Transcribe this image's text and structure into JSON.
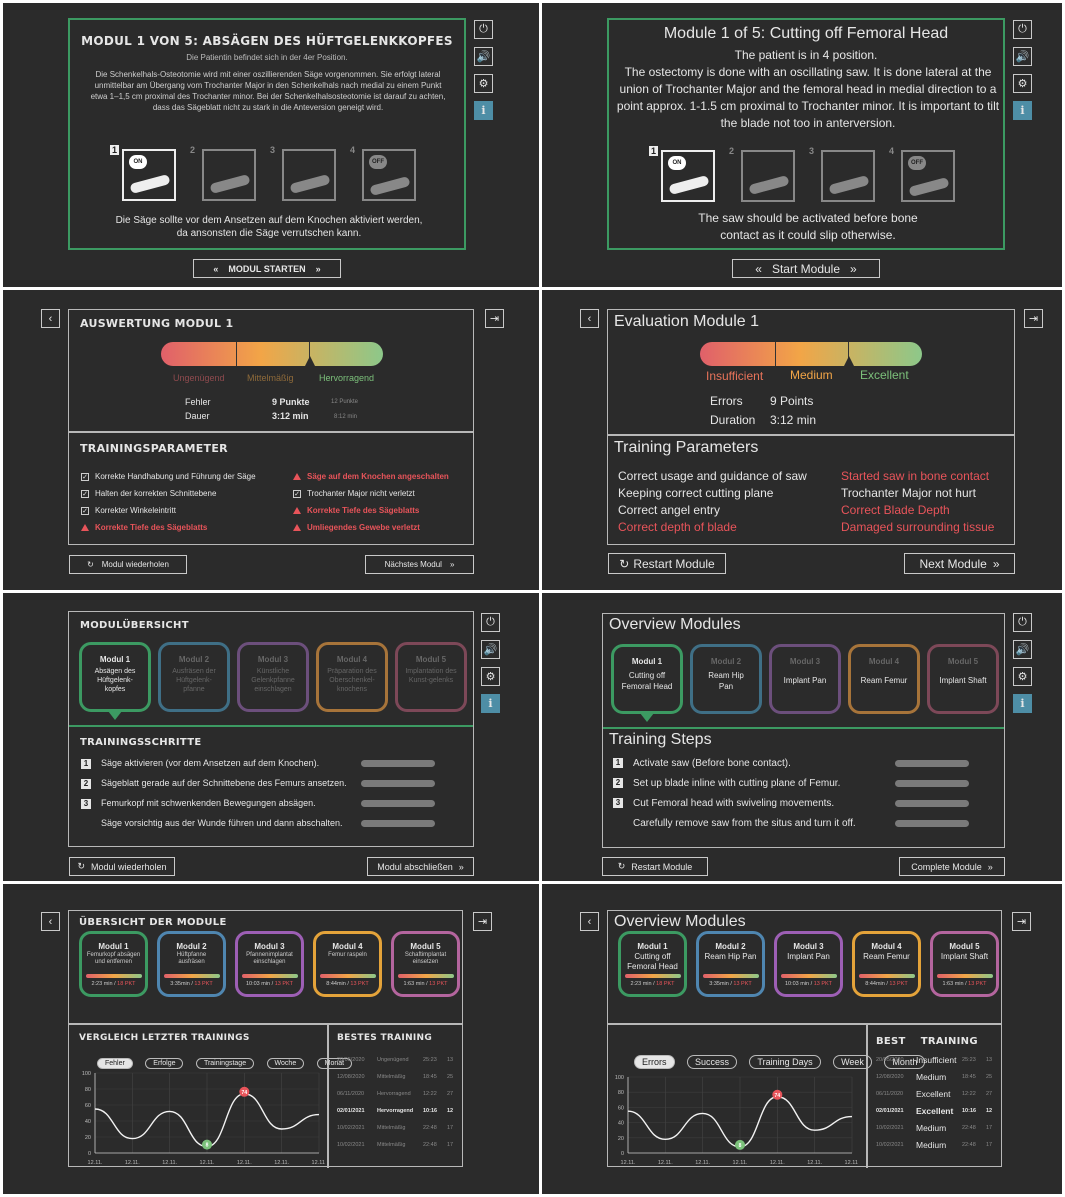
{
  "p1": {
    "title": "MODUL 1 VON 5: ABSÄGEN DES HÜFTGELENKKOPFES",
    "subtitle": "Die Patientin befindet sich in der 4er Position.",
    "body": "Die Schenkelhals-Osteotomie wird mit einer oszillierenden Säge vorgenommen. Sie erfolgt lateral unmittelbar am Übergang vom Trochanter Major in den Schenkelhals nach medial zu einem Punkt etwa 1–1,5 cm proximal des Trochanter minor. Bei der Schenkelhalsosteotomie ist darauf zu achten, dass das Sägeblatt nicht zu stark in die Anteversion geneigt wird.",
    "step_numbers": [
      "1",
      "2",
      "3",
      "4"
    ],
    "on_label": "ON",
    "off_label": "OFF",
    "hint": "Die Säge sollte vor dem Ansetzen auf dem Knochen aktiviert werden, da ansonsten die Säge verrutschen kann.",
    "start_button": "MODUL STARTEN"
  },
  "p2": {
    "title": "Module 1 of 5: Cutting off Femoral Head",
    "subtitle": "The patient is in 4 position.",
    "body": "The ostectomy is done with an oscillating saw. It is done lateral at the union of Trochanter Major and the femoral head in medial direction to a point approx. 1-1.5 cm proximal to Trochanter minor. It is important to tilt the blade not too in anterversion.",
    "step_numbers": [
      "1",
      "2",
      "3",
      "4"
    ],
    "on_label": "ON",
    "off_label": "OFF",
    "hint": "The saw should be activated before bone contact as it could slip otherwise.",
    "start_button": "Start Module"
  },
  "p3": {
    "title": "AUSWERTUNG MODUL 1",
    "scale": [
      "Ungenügend",
      "Mittelmäßig",
      "Hervorragend"
    ],
    "errors_label": "Fehler",
    "errors_value": "9 Punkte",
    "errors_max": "12 Punkte",
    "duration_label": "Dauer",
    "duration_value": "3:12 min",
    "duration_max": "8:12 min",
    "params_title": "TRAININGSPARAMETER",
    "params_left": [
      {
        "text": "Korrekte Handhabung und Führung der Säge",
        "ok": true
      },
      {
        "text": "Halten der korrekten Schnittebene",
        "ok": true
      },
      {
        "text": "Korrekter Winkeleintritt",
        "ok": true
      },
      {
        "text": "Korrekte Tiefe des Sägeblatts",
        "ok": false
      }
    ],
    "params_right": [
      {
        "text": "Säge auf dem Knochen angeschalten",
        "ok": false
      },
      {
        "text": "Trochanter Major nicht verletzt",
        "ok": true
      },
      {
        "text": "Korrekte Tiefe des Sägeblatts",
        "ok": false
      },
      {
        "text": "Umliegendes Gewebe verletzt",
        "ok": false
      }
    ],
    "repeat_button": "Modul wiederholen",
    "next_button": "Nächstes Modul"
  },
  "p4": {
    "title": "Evaluation Module 1",
    "scale": [
      "Insufficient",
      "Medium",
      "Excellent"
    ],
    "errors_label": "Errors",
    "errors_value": "9 Points",
    "duration_label": "Duration",
    "duration_value": "3:12 min",
    "params_title": "Training Parameters",
    "params_left": [
      {
        "text": "Correct usage and guidance of saw",
        "ok": true
      },
      {
        "text": "Keeping correct cutting plane",
        "ok": true
      },
      {
        "text": "Correct angel entry",
        "ok": true
      },
      {
        "text": "Correct depth of blade",
        "ok": false
      }
    ],
    "params_right": [
      {
        "text": "Started saw in bone contact",
        "ok": false
      },
      {
        "text": "Trochanter Major not hurt",
        "ok": true
      },
      {
        "text": "Correct Blade Depth",
        "ok": false
      },
      {
        "text": "Damaged surrounding tissue",
        "ok": false
      }
    ],
    "repeat_button": "Restart Module",
    "next_button": "Next Module"
  },
  "p5": {
    "title": "MODULÜBERSICHT",
    "modules": [
      {
        "name": "Modul 1",
        "desc": "Absägen des Hüftgelenk-kopfes",
        "color": "#3c9a62",
        "active": true
      },
      {
        "name": "Modul 2",
        "desc": "Ausfräsen der Hüftgelenk-pfanne",
        "color": "#3f6f86",
        "active": false
      },
      {
        "name": "Modul 3",
        "desc": "Künstliche Gelenkpfanne einschlagen",
        "color": "#6c4f7c",
        "active": false
      },
      {
        "name": "Modul 4",
        "desc": "Präparation des Oberschenkel-knochens",
        "color": "#a7743a",
        "active": false
      },
      {
        "name": "Modul 5",
        "desc": "Implantation des Kunst-gelenks",
        "color": "#7d4858",
        "active": false
      }
    ],
    "steps_title": "TRAININGSSCHRITTE",
    "steps": [
      {
        "num": "1",
        "text": "Säge aktivieren (vor dem Ansetzen auf dem Knochen)."
      },
      {
        "num": "2",
        "text": "Sägeblatt gerade auf der Schnittebene des Femurs ansetzen."
      },
      {
        "num": "3",
        "text": "Femurkopf mit schwenkenden Bewegungen absägen."
      },
      {
        "num": "",
        "text": "Säge vorsichtig aus der Wunde führen und dann abschalten."
      }
    ],
    "repeat_button": "Modul wiederholen",
    "complete_button": "Modul abschließen"
  },
  "p6": {
    "title": "Overview Modules",
    "modules": [
      {
        "name": "Modul 1",
        "desc": "Cutting off Femoral Head",
        "color": "#3c9a62",
        "active": true
      },
      {
        "name": "Modul 2",
        "desc": "Ream Hip Pan",
        "color": "#3f6f86",
        "active": false
      },
      {
        "name": "Modul 3",
        "desc": "Implant Pan",
        "color": "#6c4f7c",
        "active": false
      },
      {
        "name": "Modul 4",
        "desc": "Ream Femur",
        "color": "#a7743a",
        "active": false
      },
      {
        "name": "Modul 5",
        "desc": "Implant Shaft",
        "color": "#7d4858",
        "active": false
      }
    ],
    "steps_title": "Training Steps",
    "steps": [
      {
        "num": "1",
        "text": "Activate saw (Before bone contact)."
      },
      {
        "num": "2",
        "text": "Set up blade inline with cutting plane of Femur."
      },
      {
        "num": "3",
        "text": "Cut Femoral head with swiveling movements."
      },
      {
        "num": "",
        "text": "Carefully remove saw from the situs and turn it off."
      }
    ],
    "repeat_button": "Restart Module",
    "complete_button": "Complete Module"
  },
  "p7": {
    "title": "ÜBERSICHT DER MODULE",
    "modules": [
      {
        "name": "Modul 1",
        "desc": "Femurkopf absägen und entfernen",
        "time": "2:23 min",
        "pts": "18 PKT",
        "color": "#3c9a62"
      },
      {
        "name": "Modul 2",
        "desc": "Hüftpfanne ausfräsen",
        "time": "3:35min",
        "pts": "13 PKT",
        "color": "#4f86b0"
      },
      {
        "name": "Modul 3",
        "desc": "Pfannenimplantat einschlagen",
        "time": "10:03 min",
        "pts": "13 PKT",
        "color": "#9d5fb5"
      },
      {
        "name": "Modul 4",
        "desc": "Femur raspeln",
        "time": "8:44min",
        "pts": "13 PKT",
        "color": "#e4a33a"
      },
      {
        "name": "Modul 5",
        "desc": "Schaftimplantat einsetzen",
        "time": "1:63 min",
        "pts": "13 PKT",
        "color": "#b4659e"
      }
    ],
    "compare_title": "VERGLEICH LETZTER TRAININGS",
    "filters": [
      "Fehler",
      "Erfolge",
      "Trainingstage",
      "Woche",
      "Monat"
    ],
    "best_title": "BESTES TRAINING",
    "best_rows": [
      {
        "date": "20/05/2020",
        "rating": "Ungenügend",
        "time": "25:23",
        "n": "13",
        "bold": false
      },
      {
        "date": "12/08/2020",
        "rating": "Mittelmäßig",
        "time": "18:45",
        "n": "25",
        "bold": false
      },
      {
        "date": "06/11/2020",
        "rating": "Hervorragend",
        "time": "12:22",
        "n": "27",
        "bold": false
      },
      {
        "date": "02/01/2021",
        "rating": "Hervorragend",
        "time": "10:16",
        "n": "12",
        "bold": true
      },
      {
        "date": "10/02/2021",
        "rating": "Mittelmäßig",
        "time": "22:48",
        "n": "17",
        "bold": false
      },
      {
        "date": "10/02/2021",
        "rating": "Mittelmäßig",
        "time": "22:48",
        "n": "17",
        "bold": false
      }
    ]
  },
  "p8": {
    "title": "Overview Modules",
    "modules": [
      {
        "name": "Modul 1",
        "desc": "Cutting off Femoral Head",
        "time": "2:23 min",
        "pts": "18 PKT",
        "color": "#3c9a62"
      },
      {
        "name": "Modul 2",
        "desc": "Ream Hip Pan",
        "time": "3:35min",
        "pts": "13 PKT",
        "color": "#4f86b0"
      },
      {
        "name": "Modul 3",
        "desc": "Implant Pan",
        "time": "10:03 min",
        "pts": "13 PKT",
        "color": "#9d5fb5"
      },
      {
        "name": "Modul 4",
        "desc": "Ream Femur",
        "time": "8:44min",
        "pts": "13 PKT",
        "color": "#e4a33a"
      },
      {
        "name": "Modul 5",
        "desc": "Implant Shaft",
        "time": "1:63 min",
        "pts": "13 PKT",
        "color": "#b4659e"
      }
    ],
    "filters": [
      "Errors",
      "Success",
      "Training Days",
      "Week",
      "Month"
    ],
    "best_title": "BEST    TRAINING",
    "best_rows": [
      {
        "date": "20/05/2020",
        "rating": "Insufficient",
        "time": "25:23",
        "n": "13",
        "bold": false
      },
      {
        "date": "12/08/2020",
        "rating": "Medium",
        "time": "18:45",
        "n": "25",
        "bold": false
      },
      {
        "date": "06/11/2020",
        "rating": "Excellent",
        "time": "12:22",
        "n": "27",
        "bold": false
      },
      {
        "date": "02/01/2021",
        "rating": "Excellent",
        "time": "10:16",
        "n": "12",
        "bold": true
      },
      {
        "date": "10/02/2021",
        "rating": "Medium",
        "time": "22:48",
        "n": "17",
        "bold": false
      },
      {
        "date": "10/02/2021",
        "rating": "Medium",
        "time": "22:48",
        "n": "17",
        "bold": false
      }
    ]
  },
  "chart_data": {
    "type": "line",
    "x": [
      "12.11.",
      "12.11.",
      "12.11.",
      "12.11.",
      "12.11.",
      "12.11.",
      "12.11."
    ],
    "yticks": [
      0,
      20,
      40,
      60,
      80,
      100
    ],
    "ylim": [
      0,
      100
    ],
    "series": [
      {
        "values": [
          55,
          18,
          52,
          8,
          74,
          30,
          48
        ]
      }
    ],
    "markers": [
      {
        "label": "8",
        "color": "#7cc17b"
      },
      {
        "label": "74",
        "color": "#e8545a"
      }
    ]
  },
  "icons": {
    "power": "power-icon",
    "sound": "speaker-icon",
    "settings": "gear-icon",
    "info": "info-icon",
    "back": "chevron-left-icon",
    "exit": "exit-icon"
  },
  "info_glyph": "i"
}
